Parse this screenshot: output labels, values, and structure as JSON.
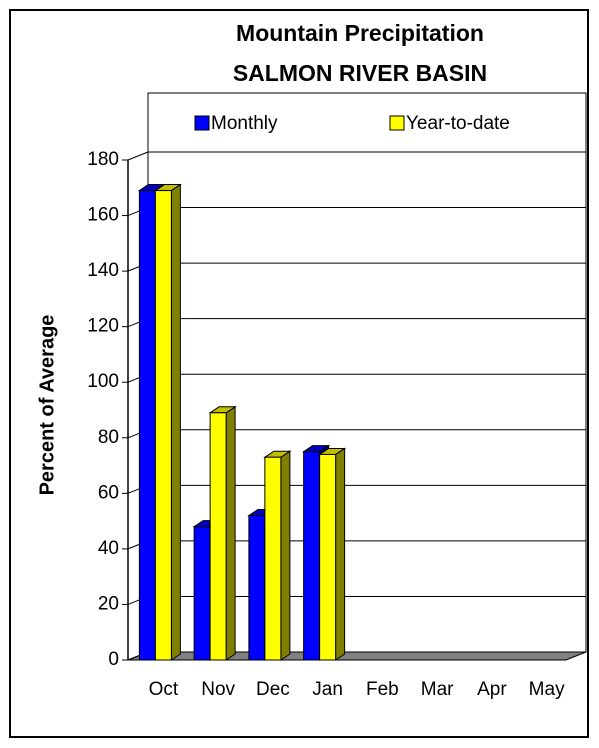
{
  "chart_data": {
    "type": "bar3d",
    "title": "Mountain Precipitation",
    "subtitle": "SALMON RIVER BASIN",
    "y_label": "Percent of Average",
    "categories": [
      "Oct",
      "Nov",
      "Dec",
      "Jan",
      "Feb",
      "Mar",
      "Apr",
      "May"
    ],
    "series": [
      {
        "name": "Monthly",
        "color": "#0000ff",
        "values": [
          169,
          48,
          52,
          75,
          null,
          null,
          null,
          null
        ]
      },
      {
        "name": "Year-to-date",
        "color": "#ffff00",
        "values": [
          169,
          89,
          73,
          74,
          null,
          null,
          null,
          null
        ]
      }
    ],
    "ylim": [
      0,
      180
    ],
    "yticks": [
      0,
      20,
      40,
      60,
      80,
      100,
      120,
      140,
      160,
      180
    ],
    "grid": true
  }
}
